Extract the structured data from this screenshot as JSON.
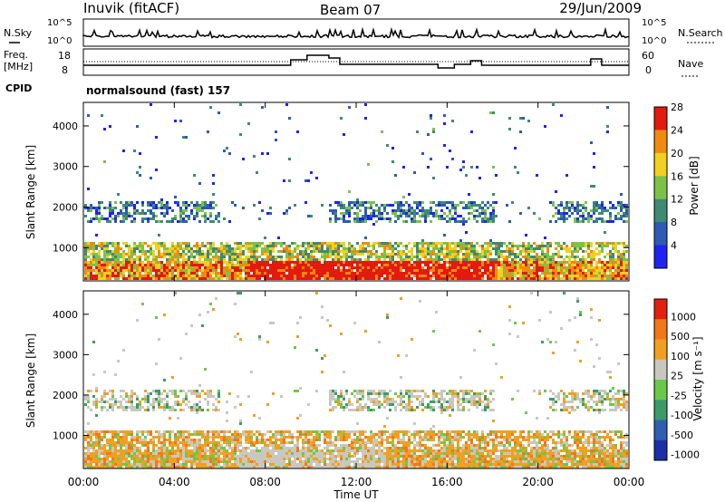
{
  "header": {
    "station": "Inuvik (fitACF)",
    "beam": "Beam 07",
    "date": "29/Jun/2009"
  },
  "noise_panel": {
    "left_label": "N.Sky",
    "right_label": "N.Search",
    "left_ticks": [
      "10^5",
      "10^0"
    ],
    "right_ticks": [
      "10^5",
      "10^0"
    ]
  },
  "freq_panel": {
    "left_label_1": "Freq.",
    "left_label_2": "[MHz]",
    "right_label": "Nave",
    "left_ticks": [
      "18",
      "8"
    ],
    "right_ticks": [
      "60",
      "0"
    ]
  },
  "cpid": {
    "label": "CPID",
    "value": "normalsound (fast) 157"
  },
  "chart_data": [
    {
      "type": "heatmap",
      "ylabel": "Slant Range [km]",
      "yticks": [
        "1000",
        "2000",
        "3000",
        "4000"
      ],
      "ylim": [
        180,
        4580
      ],
      "colorbar": {
        "label": "Power [dB]",
        "ticks": [
          "4",
          "8",
          "12",
          "16",
          "20",
          "24",
          "28"
        ],
        "colors": [
          "#1e23f2",
          "#2c5ab4",
          "#3e8a72",
          "#7cc24a",
          "#f0d020",
          "#f08a10",
          "#e21a10"
        ]
      }
    },
    {
      "type": "heatmap",
      "ylabel": "Slant Range [km]",
      "xlabel": "Time UT",
      "yticks": [
        "1000",
        "2000",
        "3000",
        "4000"
      ],
      "xticks": [
        "00:00",
        "04:00",
        "08:00",
        "12:00",
        "16:00",
        "20:00",
        "00:00"
      ],
      "ylim": [
        180,
        4580
      ],
      "colorbar": {
        "label": "Velocity [m s⁻¹]",
        "ticks": [
          "1000",
          "500",
          "100",
          "25",
          "-25",
          "-100",
          "-500",
          "-1000"
        ],
        "colors": [
          "#1c2ea8",
          "#2f5fb0",
          "#3c9a6a",
          "#6cc84a",
          "#c8c8c0",
          "#f0a020",
          "#f07818",
          "#e22010"
        ]
      }
    }
  ]
}
